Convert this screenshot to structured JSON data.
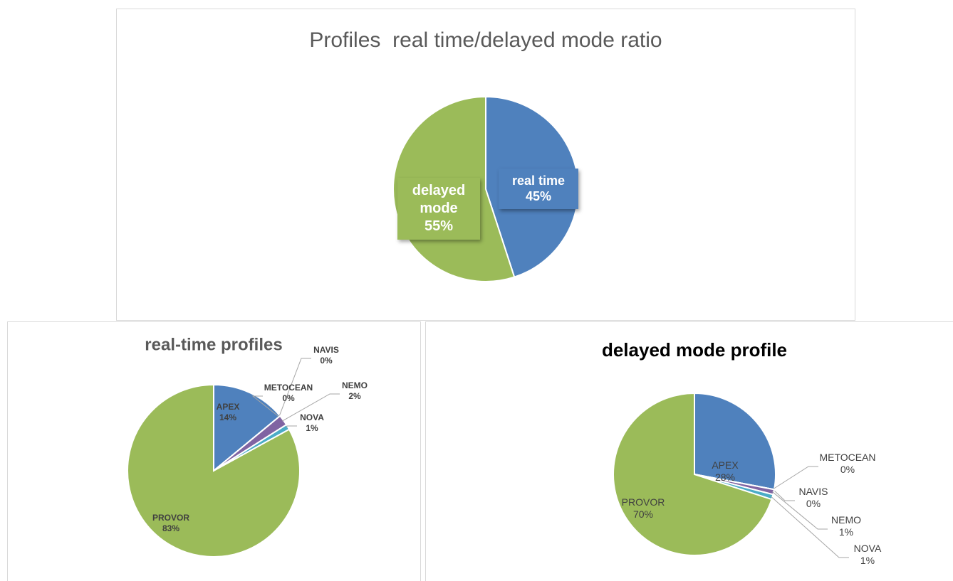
{
  "chart_data": [
    {
      "type": "pie",
      "title": "Profiles  real time/delayed mode ratio",
      "categories": [
        "real time",
        "delayed mode"
      ],
      "values": [
        45,
        55
      ],
      "value_labels": [
        "45%",
        "55%"
      ],
      "colors": [
        "#4f81bd",
        "#9bbb59"
      ]
    },
    {
      "type": "pie",
      "title": "real-time profiles",
      "categories": [
        "APEX",
        "METOCEAN",
        "NAVIS",
        "NEMO",
        "NOVA",
        "PROVOR"
      ],
      "values": [
        14,
        0,
        0,
        2,
        1,
        83
      ],
      "value_labels": [
        "14%",
        "0%",
        "0%",
        "2%",
        "1%",
        "83%"
      ],
      "colors": [
        "#4f81bd",
        "#c0504d",
        "#f79646",
        "#8064a2",
        "#4bacc6",
        "#9bbb59"
      ]
    },
    {
      "type": "pie",
      "title": "delayed mode profile",
      "categories": [
        "APEX",
        "METOCEAN",
        "NAVIS",
        "NEMO",
        "NOVA",
        "PROVOR"
      ],
      "values": [
        28,
        0,
        0,
        1,
        1,
        70
      ],
      "value_labels": [
        "28%",
        "0%",
        "0%",
        "1%",
        "1%",
        "70%"
      ],
      "colors": [
        "#4f81bd",
        "#c0504d",
        "#f79646",
        "#8064a2",
        "#4bacc6",
        "#9bbb59"
      ]
    }
  ]
}
